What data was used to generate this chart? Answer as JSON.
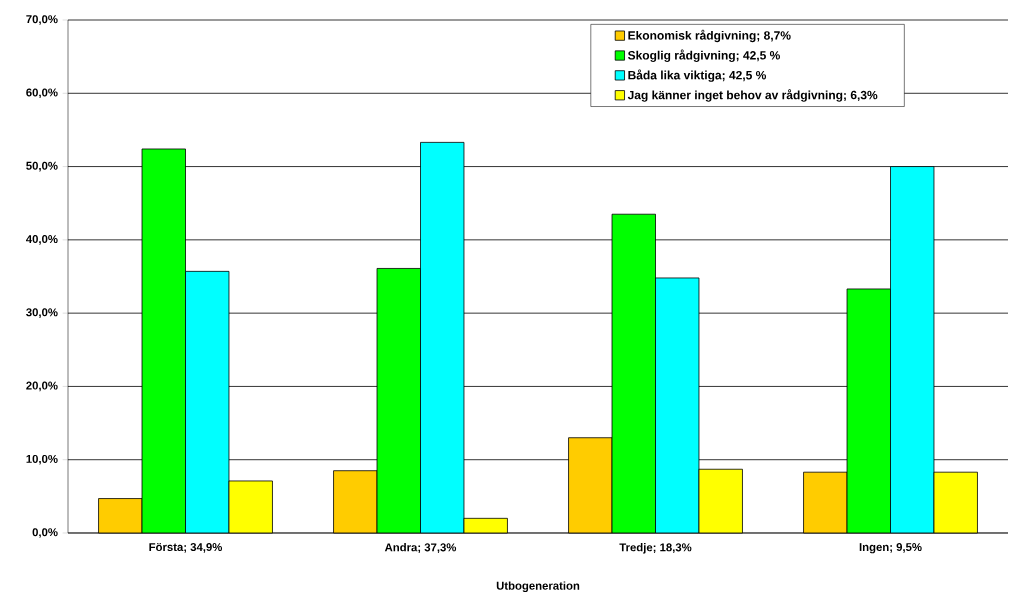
{
  "chart_data": {
    "type": "bar",
    "xlabel": "Utbogeneration",
    "categories": [
      "Första; 34,9%",
      "Andra; 37,3%",
      "Tredje; 18,3%",
      "Ingen; 9,5%"
    ],
    "series": [
      {
        "name": "Ekonomisk rådgivning; 8,7%",
        "color": "#ffcc00",
        "values": [
          4.7,
          8.5,
          13.0,
          8.3
        ]
      },
      {
        "name": "Skoglig rådgivning; 42,5 %",
        "color": "#00ff00",
        "values": [
          52.4,
          36.1,
          43.5,
          33.3
        ]
      },
      {
        "name": "Båda lika viktiga; 42,5 %",
        "color": "#00ffff",
        "values": [
          35.7,
          53.3,
          34.8,
          50.0
        ]
      },
      {
        "name": "Jag känner inget behov av rådgivning; 6,3%",
        "color": "#ffff00",
        "values": [
          7.1,
          2.0,
          8.7,
          8.3
        ]
      }
    ],
    "ylim": [
      0,
      70
    ],
    "yticks": [
      {
        "value": 0,
        "label": "0,0%"
      },
      {
        "value": 10,
        "label": "10,0%"
      },
      {
        "value": 20,
        "label": "20,0%"
      },
      {
        "value": 30,
        "label": "30,0%"
      },
      {
        "value": 40,
        "label": "40,0%"
      },
      {
        "value": 50,
        "label": "50,0%"
      },
      {
        "value": 60,
        "label": "60,0%"
      },
      {
        "value": 70,
        "label": "70,0%"
      }
    ],
    "grid": "y",
    "legend": "top right"
  }
}
